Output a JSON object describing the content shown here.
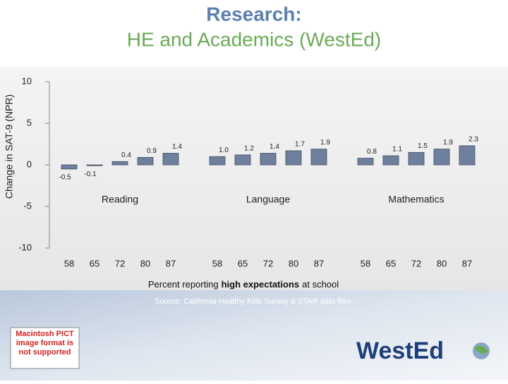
{
  "chart_data": {
    "type": "grouped-bar",
    "title": "Research:",
    "subtitle": "HE and Academics (WestEd)",
    "ylabel": "Change in SAT-9 (NPR)",
    "xlabel": {
      "before": "Percent reporting",
      "bold": "high expectations",
      "after": "at school"
    },
    "source": "Source:  California Healthy Kids Survey & STAR data files.",
    "color": "#6f809e",
    "ylim": [
      -10,
      10
    ],
    "yticks": [
      -10,
      -5,
      0,
      5,
      10
    ],
    "groups": [
      {
        "name": "Reading",
        "categories": [
          "58",
          "65",
          "72",
          "80",
          "87"
        ],
        "values": [
          -0.5,
          -0.1,
          0.4,
          0.9,
          1.4
        ],
        "value_labels": [
          "-0.5",
          "-0.1",
          "0.4",
          "0.9",
          "1.4"
        ]
      },
      {
        "name": "Language",
        "categories": [
          "58",
          "65",
          "72",
          "80",
          "87"
        ],
        "values": [
          1.0,
          1.2,
          1.4,
          1.7,
          1.9
        ],
        "value_labels": [
          "1.0",
          "1.2",
          "1.4",
          "1.7",
          "1.9"
        ]
      },
      {
        "name": "Mathematics",
        "categories": [
          "58",
          "65",
          "72",
          "80",
          "87"
        ],
        "values": [
          0.8,
          1.1,
          1.5,
          1.9,
          2.3
        ],
        "value_labels": [
          "0.8",
          "1.1",
          "1.5",
          "1.9",
          "2.3"
        ]
      }
    ]
  },
  "placeholder": "Macintosh PICT image format is not supported",
  "logo": "WestEd"
}
